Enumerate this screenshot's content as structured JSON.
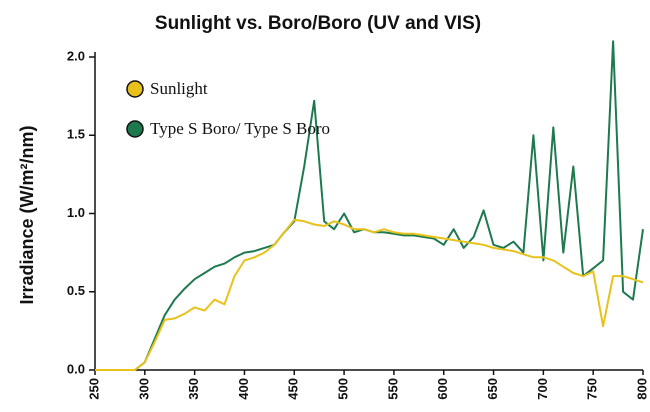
{
  "chart_data": {
    "type": "line",
    "title": "Sunlight vs. Boro/Boro (UV and VIS)",
    "ylabel": "Irradiance (W/m²/nm)",
    "x": [
      250,
      260,
      270,
      280,
      290,
      300,
      310,
      320,
      330,
      340,
      350,
      360,
      370,
      380,
      390,
      400,
      410,
      420,
      430,
      440,
      450,
      460,
      470,
      480,
      490,
      500,
      510,
      520,
      530,
      540,
      550,
      560,
      570,
      580,
      590,
      600,
      610,
      620,
      630,
      640,
      650,
      660,
      670,
      680,
      690,
      700,
      710,
      720,
      730,
      740,
      750,
      760,
      770,
      780,
      790,
      800
    ],
    "series": [
      {
        "name": "Sunlight",
        "color": "#e8c21a",
        "values": [
          0,
          0,
          0,
          0,
          0,
          0.05,
          0.18,
          0.32,
          0.33,
          0.36,
          0.4,
          0.38,
          0.45,
          0.42,
          0.6,
          0.7,
          0.72,
          0.75,
          0.8,
          0.88,
          0.96,
          0.95,
          0.93,
          0.92,
          0.95,
          0.93,
          0.9,
          0.9,
          0.88,
          0.9,
          0.88,
          0.87,
          0.87,
          0.86,
          0.85,
          0.84,
          0.83,
          0.82,
          0.81,
          0.8,
          0.78,
          0.77,
          0.76,
          0.74,
          0.72,
          0.72,
          0.7,
          0.66,
          0.62,
          0.6,
          0.63,
          0.28,
          0.6,
          0.6,
          0.58,
          0.56
        ]
      },
      {
        "name": "Type S Boro/ Type S Boro",
        "color": "#1e7a4e",
        "values": [
          0,
          0,
          0,
          0,
          0,
          0.05,
          0.2,
          0.35,
          0.45,
          0.52,
          0.58,
          0.62,
          0.66,
          0.68,
          0.72,
          0.75,
          0.76,
          0.78,
          0.8,
          0.88,
          0.95,
          1.3,
          1.72,
          0.95,
          0.9,
          1.0,
          0.88,
          0.9,
          0.88,
          0.88,
          0.87,
          0.86,
          0.86,
          0.85,
          0.84,
          0.8,
          0.9,
          0.78,
          0.85,
          1.02,
          0.8,
          0.78,
          0.82,
          0.75,
          1.5,
          0.7,
          1.55,
          0.75,
          1.3,
          0.6,
          0.65,
          0.7,
          2.1,
          0.5,
          0.45,
          0.9
        ]
      }
    ],
    "xlim": [
      250,
      800
    ],
    "xticks": [
      250,
      300,
      350,
      400,
      450,
      500,
      550,
      600,
      650,
      700,
      750,
      800
    ],
    "ylim": [
      0,
      2
    ],
    "yticks": [
      {
        "value": 0,
        "label": "0.0"
      },
      0.5,
      {
        "value": 1,
        "label": "1.0"
      },
      1.5,
      {
        "value": 2,
        "label": "2.0"
      }
    ],
    "legend": "upper left",
    "grid": false
  }
}
